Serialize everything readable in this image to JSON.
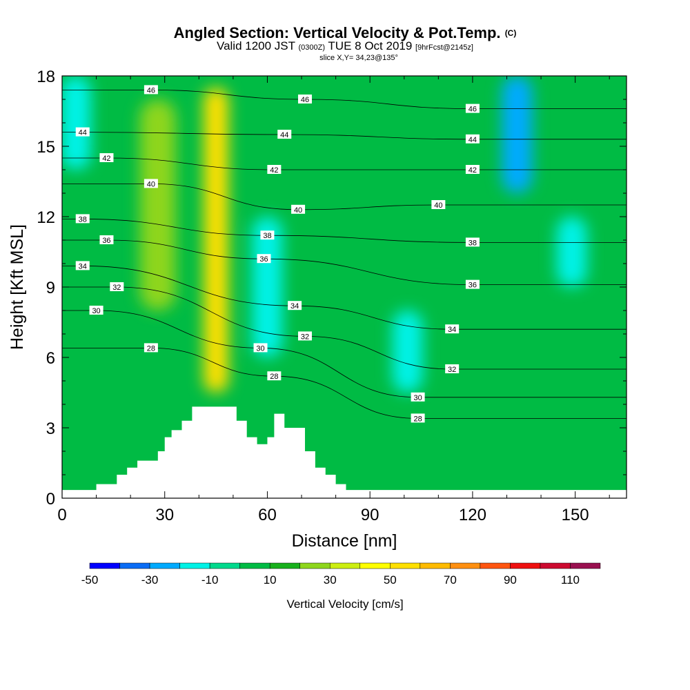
{
  "header": {
    "title_main": "Angled Section: Vertical Velocity & Pot.Temp.",
    "title_unit": "(C)",
    "valid_prefix": "Valid 1200 JST",
    "valid_utc": "(0300Z)",
    "valid_date": "TUE 8 Oct 2019",
    "forecast_info": "[9hrFcst@2145z]",
    "slice_info": "slice X,Y= 34,23@135°"
  },
  "chart_data": {
    "type": "heatmap",
    "title": "Angled Section: Vertical Velocity & Pot.Temp. (C)",
    "xlabel": "Distance [nm]",
    "ylabel": "Height [Kft MSL]",
    "xlim": [
      0,
      165
    ],
    "ylim": [
      0,
      18
    ],
    "x_ticks": [
      0,
      30,
      60,
      90,
      120,
      150
    ],
    "y_ticks": [
      0,
      3,
      6,
      9,
      12,
      15,
      18
    ],
    "grid": false,
    "colorbar": {
      "title": "Vertical Velocity [cm/s]",
      "bounds": [
        -50,
        -40,
        -30,
        -20,
        -10,
        0,
        10,
        20,
        30,
        40,
        50,
        60,
        70,
        80,
        90,
        100,
        110,
        120
      ],
      "tick_labels": [
        "-50",
        "-30",
        "-10",
        "10",
        "30",
        "50",
        "70",
        "90",
        "110"
      ],
      "tick_values": [
        -50,
        -30,
        -10,
        10,
        30,
        50,
        70,
        90,
        110
      ],
      "colors": [
        "#0000ff",
        "#0a6cf5",
        "#00aaff",
        "#00f2e6",
        "#00d98c",
        "#00bb44",
        "#18b01c",
        "#8ed61c",
        "#ccee10",
        "#ffff00",
        "#ffe000",
        "#ffbb00",
        "#ff8f10",
        "#ff5510",
        "#ee1010",
        "#cc0a30",
        "#991050",
        "#660088"
      ]
    },
    "velocity_features": [
      {
        "kind": "updraft_core",
        "x": 45,
        "y_range": [
          4.5,
          17.5
        ],
        "max_value": 55
      },
      {
        "kind": "updraft",
        "x": 28,
        "y_range": [
          8,
          17
        ],
        "max_value": 25
      },
      {
        "kind": "downdraft",
        "x": 60,
        "y_range": [
          6,
          12
        ],
        "min_value": -15
      },
      {
        "kind": "downdraft",
        "x": 101,
        "y_range": [
          4.5,
          8
        ],
        "min_value": -15
      },
      {
        "kind": "downdraft",
        "x": 133,
        "y_range": [
          13,
          18
        ],
        "min_value": -25
      },
      {
        "kind": "downdraft",
        "x": 149,
        "y_range": [
          9,
          12
        ],
        "min_value": -15
      },
      {
        "kind": "downdraft",
        "x": 4,
        "y_range": [
          14,
          18
        ],
        "min_value": -15
      }
    ],
    "terrain_profile": {
      "x": [
        0,
        10,
        10,
        16,
        16,
        19,
        19,
        22,
        22,
        28,
        28,
        30,
        30,
        32,
        32,
        35,
        35,
        38,
        38,
        42,
        42,
        51,
        51,
        54,
        54,
        57,
        57,
        60,
        60,
        62,
        62,
        65,
        65,
        71,
        71,
        74,
        74,
        77,
        77,
        80,
        80,
        83,
        83,
        86,
        86,
        91,
        91,
        165
      ],
      "height_kft": [
        0.35,
        0.35,
        0.6,
        0.6,
        1.0,
        1.0,
        1.3,
        1.3,
        1.6,
        1.6,
        2.0,
        2.0,
        2.6,
        2.6,
        2.9,
        2.9,
        3.3,
        3.3,
        3.9,
        3.9,
        3.9,
        3.9,
        3.3,
        3.3,
        2.6,
        2.6,
        2.3,
        2.3,
        2.6,
        2.6,
        3.6,
        3.6,
        3.0,
        3.0,
        2.0,
        2.0,
        1.3,
        1.3,
        1.0,
        1.0,
        0.6,
        0.6,
        0.35,
        0.35,
        0.35,
        0.35,
        0.35,
        0.35
      ]
    },
    "isentrope_labels": [
      {
        "text": "46",
        "x": 26,
        "y": 17.4
      },
      {
        "text": "44",
        "x": 6,
        "y": 15.6
      },
      {
        "text": "42",
        "x": 13,
        "y": 14.5
      },
      {
        "text": "40",
        "x": 26,
        "y": 13.4
      },
      {
        "text": "38",
        "x": 6,
        "y": 11.9
      },
      {
        "text": "36",
        "x": 13,
        "y": 11.0
      },
      {
        "text": "34",
        "x": 6,
        "y": 9.9
      },
      {
        "text": "32",
        "x": 16,
        "y": 9.0
      },
      {
        "text": "30",
        "x": 10,
        "y": 8.0
      },
      {
        "text": "28",
        "x": 26,
        "y": 6.4
      },
      {
        "text": "46",
        "x": 71,
        "y": 17.0
      },
      {
        "text": "44",
        "x": 65,
        "y": 15.5
      },
      {
        "text": "42",
        "x": 62,
        "y": 14.0
      },
      {
        "text": "40",
        "x": 69,
        "y": 12.3
      },
      {
        "text": "38",
        "x": 60,
        "y": 11.2
      },
      {
        "text": "36",
        "x": 59,
        "y": 10.2
      },
      {
        "text": "34",
        "x": 68,
        "y": 8.2
      },
      {
        "text": "32",
        "x": 71,
        "y": 6.9
      },
      {
        "text": "30",
        "x": 58,
        "y": 6.4
      },
      {
        "text": "28",
        "x": 62,
        "y": 5.2
      },
      {
        "text": "46",
        "x": 120,
        "y": 16.6
      },
      {
        "text": "44",
        "x": 120,
        "y": 15.3
      },
      {
        "text": "42",
        "x": 120,
        "y": 14.0
      },
      {
        "text": "40",
        "x": 110,
        "y": 12.5
      },
      {
        "text": "38",
        "x": 120,
        "y": 10.9
      },
      {
        "text": "36",
        "x": 120,
        "y": 9.1
      },
      {
        "text": "34",
        "x": 114,
        "y": 7.2
      },
      {
        "text": "32",
        "x": 114,
        "y": 5.5
      },
      {
        "text": "30",
        "x": 104,
        "y": 4.3
      },
      {
        "text": "28",
        "x": 104,
        "y": 3.4
      }
    ]
  }
}
